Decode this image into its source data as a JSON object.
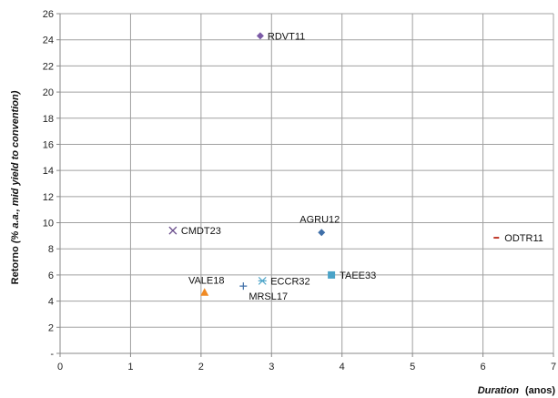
{
  "chart_data": {
    "type": "scatter",
    "xlabel_italic": "Duration",
    "xlabel_rest": "(anos)",
    "ylabel_prefix": "Retorno",
    "ylabel_italic": "(% a.a., mid yield to convention)",
    "xlim": [
      0,
      7
    ],
    "ylim": [
      0,
      26
    ],
    "x_ticks": [
      "0",
      "1",
      "2",
      "3",
      "4",
      "5",
      "6",
      "7"
    ],
    "y_ticks": [
      "-",
      "2",
      "4",
      "6",
      "8",
      "10",
      "12",
      "14",
      "16",
      "18",
      "20",
      "22",
      "24",
      "26"
    ],
    "grid": true,
    "points": [
      {
        "label": "RDVT11",
        "x": 2.84,
        "y": 24.3,
        "marker": "diamond",
        "color": "#7b5aa6"
      },
      {
        "label": "AGRU12",
        "x": 3.71,
        "y": 9.25,
        "marker": "diamond",
        "color": "#3f6fa8"
      },
      {
        "label": "CMDT23",
        "x": 1.6,
        "y": 9.4,
        "marker": "x",
        "color": "#6a4e8c"
      },
      {
        "label": "ODTR11",
        "x": 6.19,
        "y": 8.85,
        "marker": "dash",
        "color": "#c0392b"
      },
      {
        "label": "TAEE33",
        "x": 3.85,
        "y": 6.0,
        "marker": "square",
        "color": "#4aa3c8"
      },
      {
        "label": "ECCR32",
        "x": 2.87,
        "y": 5.55,
        "marker": "star",
        "color": "#4aa3c8"
      },
      {
        "label": "MRSL17",
        "x": 2.6,
        "y": 5.15,
        "marker": "plus",
        "color": "#3f6fa8"
      },
      {
        "label": "VALE18",
        "x": 2.05,
        "y": 4.65,
        "marker": "triangle",
        "color": "#f08a24"
      }
    ]
  }
}
